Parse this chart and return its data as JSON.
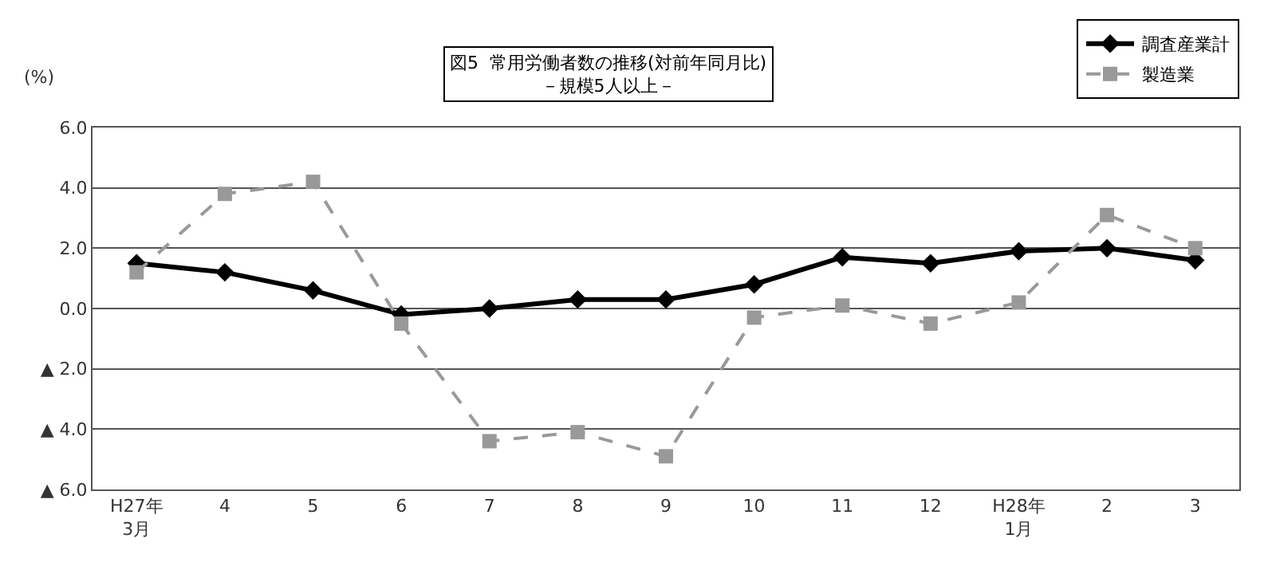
{
  "chart_data": {
    "type": "line",
    "title": "図5  常用労働者数の推移(対前年同月比)\n－規模5人以上－",
    "ylabel": "(%)",
    "categories": [
      "H27年\n3月",
      "4",
      "5",
      "6",
      "7",
      "8",
      "9",
      "10",
      "11",
      "12",
      "H28年\n1月",
      "2",
      "3"
    ],
    "series": [
      {
        "name": "調査産業計",
        "color": "#000000",
        "marker": "diamond",
        "line_style": "solid",
        "values": [
          1.5,
          1.2,
          0.6,
          -0.2,
          0.0,
          0.3,
          0.3,
          0.8,
          1.7,
          1.5,
          1.9,
          2.0,
          1.6
        ]
      },
      {
        "name": "製造業",
        "color": "#999999",
        "marker": "square",
        "line_style": "dashed",
        "values": [
          1.2,
          3.8,
          4.2,
          -0.5,
          -4.4,
          -4.1,
          -4.9,
          -0.3,
          0.1,
          -0.5,
          0.2,
          3.1,
          2.0
        ]
      }
    ],
    "ylim": [
      -6,
      6
    ],
    "yticks": [
      {
        "value": -6,
        "label": "▲ 6.0"
      },
      {
        "value": -4,
        "label": "▲ 4.0"
      },
      {
        "value": -2,
        "label": "▲ 2.0"
      },
      {
        "value": 0,
        "label": "0.0"
      },
      {
        "value": 2,
        "label": "2.0"
      },
      {
        "value": 4,
        "label": "4.0"
      },
      {
        "value": 6,
        "label": "6.0"
      }
    ],
    "grid": "y",
    "legend": "top right"
  }
}
